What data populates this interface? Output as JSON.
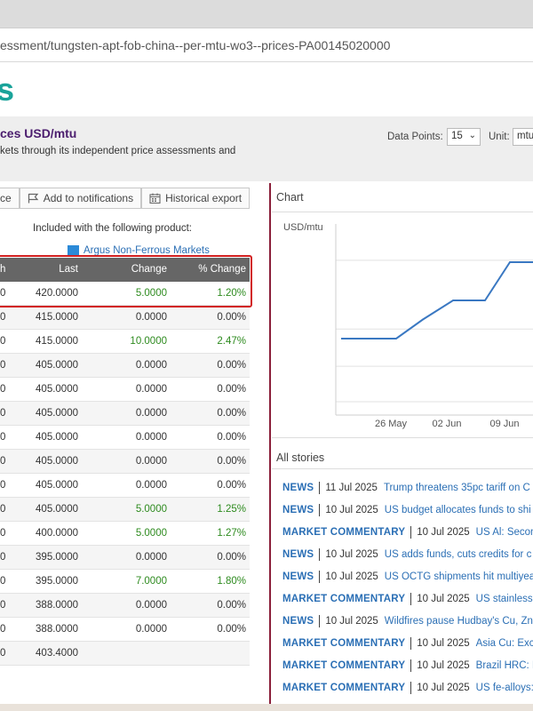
{
  "browser": {
    "url": "essment/tungsten-apt-fob-china--per-mtu-wo3--prices-PA00145020000"
  },
  "brand": {
    "text": "s"
  },
  "header": {
    "title": "ces USD/mtu",
    "description": "kets through its independent price assessments and",
    "data_points_label": "Data Points:",
    "data_points_value": "15",
    "unit_label": "Unit:",
    "unit_value": "mtu"
  },
  "toolbar": {
    "btn1_label": "ce",
    "notifications_label": "Add to notifications",
    "export_label": "Historical export"
  },
  "included": {
    "text": "Included with the following product:",
    "product": "Argus Non-Ferrous Markets"
  },
  "table": {
    "headers": {
      "h": "h",
      "last": "Last",
      "change": "Change",
      "pct": "% Change"
    },
    "rows": [
      {
        "h": "0",
        "last": "420.0000",
        "change": "5.0000",
        "pct": "1.20%",
        "up": true
      },
      {
        "h": "0",
        "last": "415.0000",
        "change": "0.0000",
        "pct": "0.00%",
        "up": false
      },
      {
        "h": "0",
        "last": "415.0000",
        "change": "10.0000",
        "pct": "2.47%",
        "up": true
      },
      {
        "h": "0",
        "last": "405.0000",
        "change": "0.0000",
        "pct": "0.00%",
        "up": false
      },
      {
        "h": "0",
        "last": "405.0000",
        "change": "0.0000",
        "pct": "0.00%",
        "up": false
      },
      {
        "h": "0",
        "last": "405.0000",
        "change": "0.0000",
        "pct": "0.00%",
        "up": false
      },
      {
        "h": "0",
        "last": "405.0000",
        "change": "0.0000",
        "pct": "0.00%",
        "up": false
      },
      {
        "h": "0",
        "last": "405.0000",
        "change": "0.0000",
        "pct": "0.00%",
        "up": false
      },
      {
        "h": "0",
        "last": "405.0000",
        "change": "0.0000",
        "pct": "0.00%",
        "up": false
      },
      {
        "h": "0",
        "last": "405.0000",
        "change": "5.0000",
        "pct": "1.25%",
        "up": true
      },
      {
        "h": "0",
        "last": "400.0000",
        "change": "5.0000",
        "pct": "1.27%",
        "up": true
      },
      {
        "h": "0",
        "last": "395.0000",
        "change": "0.0000",
        "pct": "0.00%",
        "up": false
      },
      {
        "h": "0",
        "last": "395.0000",
        "change": "7.0000",
        "pct": "1.80%",
        "up": true
      },
      {
        "h": "0",
        "last": "388.0000",
        "change": "0.0000",
        "pct": "0.00%",
        "up": false
      },
      {
        "h": "0",
        "last": "388.0000",
        "change": "0.0000",
        "pct": "0.00%",
        "up": false
      },
      {
        "h": "0",
        "last": "403.4000",
        "change": "",
        "pct": "",
        "up": false
      }
    ]
  },
  "chart": {
    "heading": "Chart",
    "ylabel": "USD/mtu",
    "x_ticks": [
      "26 May",
      "02 Jun",
      "09 Jun"
    ],
    "line_color": "#3a78c2"
  },
  "chart_data": {
    "type": "line",
    "ylabel": "USD/mtu",
    "x": [
      "19 May",
      "26 May",
      "28 May",
      "02 Jun",
      "04 Jun",
      "09 Jun",
      "12 Jun"
    ],
    "values": [
      395,
      395,
      400,
      405,
      405,
      415,
      415
    ],
    "x_ticks": [
      "26 May",
      "02 Jun",
      "09 Jun"
    ],
    "grid": true
  },
  "stories": {
    "heading": "All stories",
    "items": [
      {
        "cat": "NEWS",
        "date": "11 Jul 2025",
        "title": "Trump threatens 35pc tariff on C"
      },
      {
        "cat": "NEWS",
        "date": "10 Jul 2025",
        "title": "US budget allocates funds to shi"
      },
      {
        "cat": "MARKET COMMENTARY",
        "date": "10 Jul 2025",
        "title": "US Al: Seconda"
      },
      {
        "cat": "NEWS",
        "date": "10 Jul 2025",
        "title": "US adds funds, cuts credits for c"
      },
      {
        "cat": "NEWS",
        "date": "10 Jul 2025",
        "title": "US OCTG shipments hit multiyea"
      },
      {
        "cat": "MARKET COMMENTARY",
        "date": "10 Jul 2025",
        "title": "US stainless: Tr"
      },
      {
        "cat": "NEWS",
        "date": "10 Jul 2025",
        "title": "Wildfires pause Hudbay's Cu, Zn"
      },
      {
        "cat": "MARKET COMMENTARY",
        "date": "10 Jul 2025",
        "title": "Asia Cu: Excha"
      },
      {
        "cat": "MARKET COMMENTARY",
        "date": "10 Jul 2025",
        "title": "Brazil HRC: Imp"
      },
      {
        "cat": "MARKET COMMENTARY",
        "date": "10 Jul 2025",
        "title": "US fe-alloys: Fe"
      }
    ]
  }
}
